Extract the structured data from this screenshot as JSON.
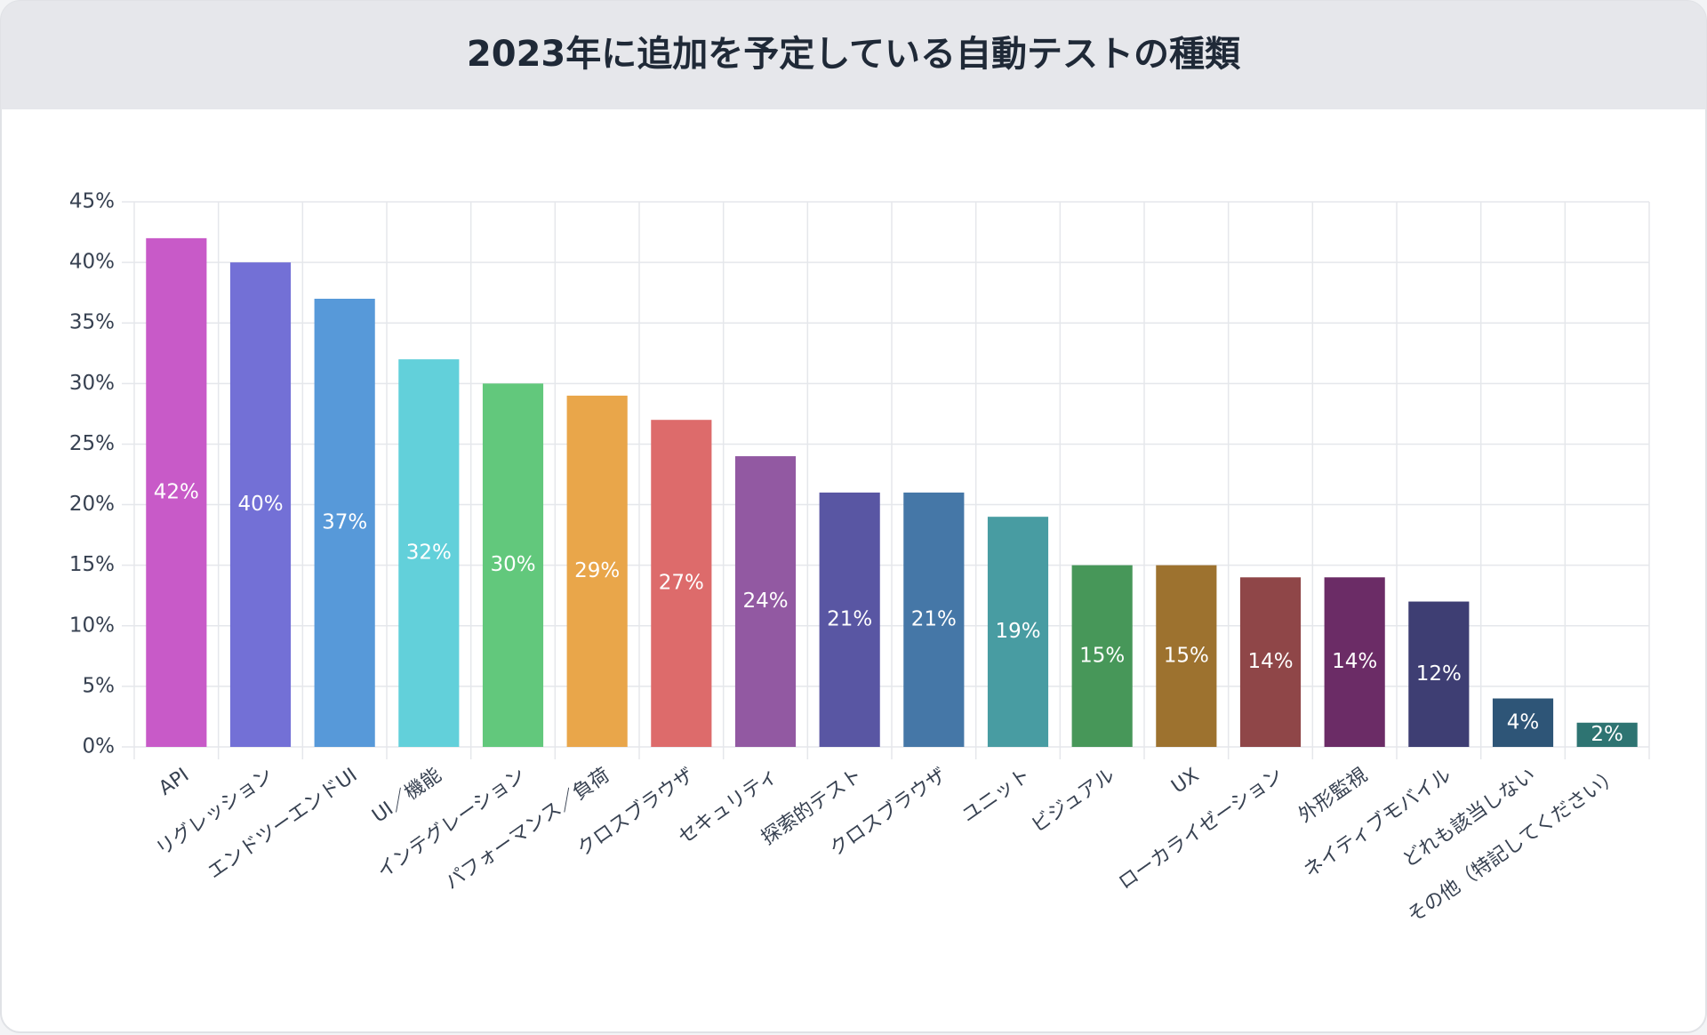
{
  "chart_data": {
    "type": "bar",
    "title": "2023年に追加を予定している自動テストの種類",
    "categories": [
      "API",
      "リグレッション",
      "エンドツーエンドUI",
      "UI／機能",
      "インテグレーション",
      "パフォーマンス／負荷",
      "クロスブラウザ",
      "セキュリティ",
      "探索的テスト",
      "クロスブラウザ",
      "ユニット",
      "ビジュアル",
      "UX",
      "ローカライゼーション",
      "外形監視",
      "ネイティブモバイル",
      "どれも該当しない",
      "その他（特記してください）"
    ],
    "values": [
      42,
      40,
      37,
      32,
      30,
      29,
      27,
      24,
      21,
      21,
      19,
      15,
      15,
      14,
      14,
      12,
      4,
      2
    ],
    "value_labels": [
      "42%",
      "40%",
      "37%",
      "32%",
      "30%",
      "29%",
      "27%",
      "24%",
      "21%",
      "21%",
      "19%",
      "15%",
      "15%",
      "14%",
      "14%",
      "12%",
      "4%",
      "2%"
    ],
    "colors": [
      "#c85ac8",
      "#7370d6",
      "#5799d9",
      "#62d0da",
      "#62c87c",
      "#e9a64a",
      "#dd6b6b",
      "#9259a2",
      "#5956a3",
      "#4577a7",
      "#489ca2",
      "#479759",
      "#9d722f",
      "#8f4648",
      "#6b2c66",
      "#3e3e73",
      "#2e5577",
      "#2e7472"
    ],
    "ylim": [
      0,
      45
    ],
    "yticks": [
      {
        "value": 0,
        "label": "0%"
      },
      {
        "value": 5,
        "label": "5%"
      },
      {
        "value": 10,
        "label": "10%"
      },
      {
        "value": 15,
        "label": "15%"
      },
      {
        "value": 20,
        "label": "20%"
      },
      {
        "value": 25,
        "label": "25%"
      },
      {
        "value": 30,
        "label": "30%"
      },
      {
        "value": 35,
        "label": "35%"
      },
      {
        "value": 40,
        "label": "40%"
      },
      {
        "value": 45,
        "label": "45%"
      }
    ],
    "grid": true
  }
}
